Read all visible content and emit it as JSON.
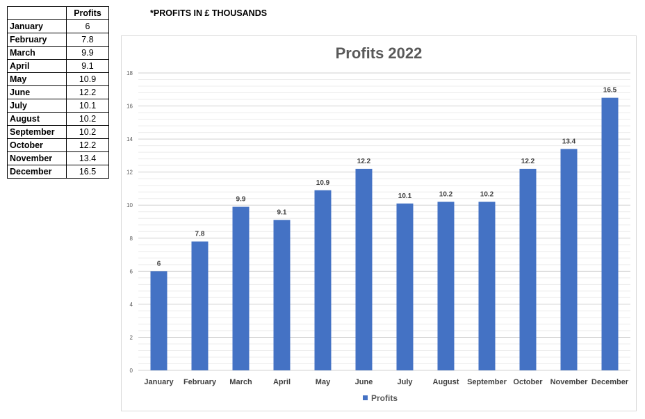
{
  "table": {
    "header": [
      "",
      "Profits"
    ],
    "rows": [
      {
        "month": "January",
        "value": "6"
      },
      {
        "month": "February",
        "value": "7.8"
      },
      {
        "month": "March",
        "value": "9.9"
      },
      {
        "month": "April",
        "value": "9.1"
      },
      {
        "month": "May",
        "value": "10.9"
      },
      {
        "month": "June",
        "value": "12.2"
      },
      {
        "month": "July",
        "value": "10.1"
      },
      {
        "month": "August",
        "value": "10.2"
      },
      {
        "month": "September",
        "value": "10.2"
      },
      {
        "month": "October",
        "value": "12.2"
      },
      {
        "month": "November",
        "value": "13.4"
      },
      {
        "month": "December",
        "value": "16.5"
      }
    ]
  },
  "note": "*PROFITS IN £ THOUSANDS",
  "chart_data": {
    "type": "bar",
    "title": "Profits 2022",
    "categories": [
      "January",
      "February",
      "March",
      "April",
      "May",
      "June",
      "July",
      "August",
      "September",
      "October",
      "November",
      "December"
    ],
    "series": [
      {
        "name": "Profits",
        "values": [
          6,
          7.8,
          9.9,
          9.1,
          10.9,
          12.2,
          10.1,
          10.2,
          10.2,
          12.2,
          13.4,
          16.5
        ],
        "color": "#4472c4"
      }
    ],
    "ylim": [
      0,
      18
    ],
    "yticks": [
      0,
      2,
      4,
      6,
      8,
      10,
      12,
      14,
      16,
      18
    ],
    "data_labels": [
      "6",
      "7.8",
      "9.9",
      "9.1",
      "10.9",
      "12.2",
      "10.1",
      "10.2",
      "10.2",
      "12.2",
      "13.4",
      "16.5"
    ],
    "grid": true,
    "legend": "bottom"
  }
}
